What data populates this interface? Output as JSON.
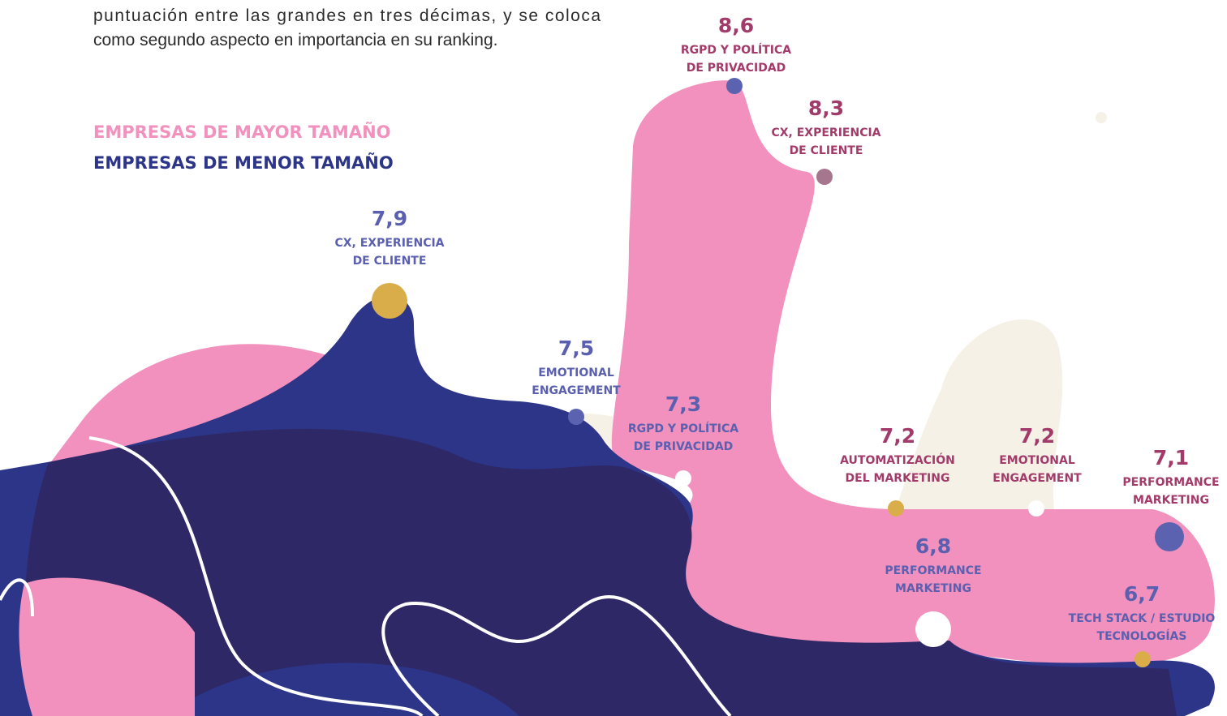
{
  "intro": {
    "lines": [
      "puntuación entre las grandes en tres décimas, y se coloca",
      "como segundo aspecto en importancia en su ranking."
    ]
  },
  "legend": {
    "large": "EMPRESAS DE MAYOR TAMAÑO",
    "small": "EMPRESAS DE MENOR TAMAÑO"
  },
  "points": [
    {
      "value": "8,6",
      "lines": [
        "RGPD Y POLÍTICA",
        "DE PRIVACIDAD"
      ]
    },
    {
      "value": "8,3",
      "lines": [
        "CX, EXPERIENCIA",
        "DE CLIENTE"
      ]
    },
    {
      "value": "7,9",
      "lines": [
        "CX, EXPERIENCIA",
        "DE CLIENTE"
      ]
    },
    {
      "value": "7,5",
      "lines": [
        "EMOTIONAL",
        "ENGAGEMENT"
      ]
    },
    {
      "value": "7,3",
      "lines": [
        "RGPD Y POLÍTICA",
        "DE PRIVACIDAD"
      ]
    },
    {
      "value": "7,2",
      "lines": [
        "AUTOMATIZACIÓN",
        "DEL MARKETING"
      ]
    },
    {
      "value": "7,2",
      "lines": [
        "EMOTIONAL",
        "ENGAGEMENT"
      ]
    },
    {
      "value": "7,1",
      "lines": [
        "PERFORMANCE",
        "MARKETING"
      ]
    },
    {
      "value": "6,8",
      "lines": [
        "PERFORMANCE",
        "MARKETING"
      ]
    },
    {
      "value": "6,7",
      "lines": [
        "TECH STACK / ESTUDIO",
        "TECNOLOGÍAS"
      ]
    }
  ]
}
